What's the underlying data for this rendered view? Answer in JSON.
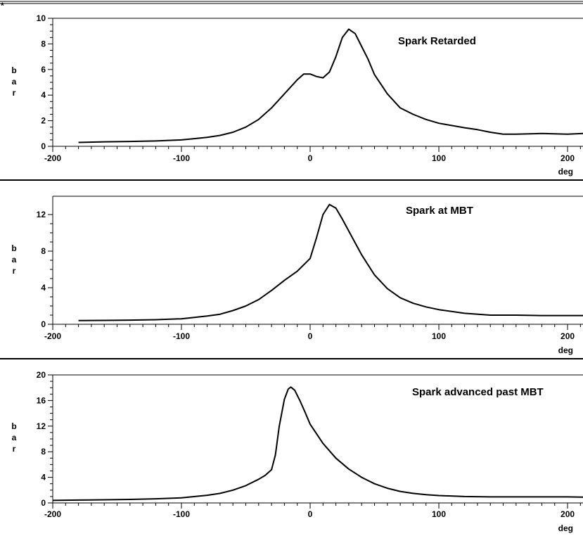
{
  "corner_mark": "*",
  "chart_data": [
    {
      "type": "line",
      "title": "Spark Retarded",
      "xlabel": "deg",
      "ylabel": "b a r",
      "xlim": [
        -200,
        212
      ],
      "ylim": [
        0,
        10
      ],
      "xticks": [
        -200,
        -100,
        0,
        100,
        200
      ],
      "yticks": [
        0,
        2,
        4,
        6,
        8,
        10
      ],
      "grid": false,
      "series": [
        {
          "x": [
            -180,
            -160,
            -140,
            -120,
            -100,
            -90,
            -80,
            -70,
            -60,
            -50,
            -40,
            -30,
            -20,
            -10,
            -5,
            0,
            5,
            10,
            15,
            20,
            25,
            30,
            35,
            40,
            45,
            50,
            60,
            70,
            80,
            90,
            100,
            120,
            130,
            140,
            150,
            160,
            180,
            200,
            212
          ],
          "y": [
            0.3,
            0.35,
            0.38,
            0.42,
            0.5,
            0.6,
            0.7,
            0.85,
            1.1,
            1.5,
            2.1,
            3.0,
            4.1,
            5.2,
            5.65,
            5.65,
            5.45,
            5.35,
            5.8,
            7.0,
            8.5,
            9.15,
            8.8,
            7.8,
            6.8,
            5.6,
            4.1,
            3.0,
            2.5,
            2.1,
            1.8,
            1.45,
            1.3,
            1.1,
            0.95,
            0.95,
            1.0,
            0.95,
            1.0
          ]
        }
      ]
    },
    {
      "type": "line",
      "title": "Spark at MBT",
      "xlabel": "deg",
      "ylabel": "b a r",
      "xlim": [
        -200,
        212
      ],
      "ylim": [
        0,
        14
      ],
      "xticks": [
        -200,
        -100,
        0,
        100,
        200
      ],
      "yticks": [
        0,
        4,
        8,
        12
      ],
      "grid": false,
      "series": [
        {
          "x": [
            -180,
            -160,
            -140,
            -120,
            -100,
            -90,
            -80,
            -70,
            -60,
            -50,
            -40,
            -30,
            -20,
            -10,
            0,
            5,
            10,
            15,
            20,
            25,
            30,
            40,
            50,
            60,
            70,
            80,
            90,
            100,
            120,
            140,
            160,
            180,
            200,
            212
          ],
          "y": [
            0.4,
            0.42,
            0.45,
            0.5,
            0.6,
            0.75,
            0.9,
            1.1,
            1.5,
            2.0,
            2.7,
            3.7,
            4.8,
            5.8,
            7.2,
            9.5,
            12.0,
            13.1,
            12.7,
            11.5,
            10.2,
            7.6,
            5.4,
            3.9,
            2.9,
            2.3,
            1.9,
            1.6,
            1.2,
            1.0,
            1.0,
            0.95,
            0.95,
            0.95
          ]
        }
      ]
    },
    {
      "type": "line",
      "title": "Spark advanced past MBT",
      "xlabel": "deg",
      "ylabel": "b a r",
      "xlim": [
        -200,
        212
      ],
      "ylim": [
        0,
        20
      ],
      "xticks": [
        -200,
        -100,
        0,
        100,
        200
      ],
      "yticks": [
        0,
        4,
        8,
        12,
        16,
        20
      ],
      "grid": false,
      "series": [
        {
          "x": [
            -200,
            -180,
            -160,
            -140,
            -120,
            -100,
            -80,
            -70,
            -60,
            -50,
            -40,
            -35,
            -30,
            -27,
            -24,
            -20,
            -17,
            -15,
            -12,
            -8,
            -4,
            0,
            10,
            20,
            30,
            40,
            50,
            60,
            70,
            80,
            90,
            100,
            120,
            140,
            160,
            180,
            200,
            212
          ],
          "y": [
            0.4,
            0.45,
            0.5,
            0.55,
            0.65,
            0.8,
            1.2,
            1.5,
            2.0,
            2.7,
            3.7,
            4.3,
            5.2,
            7.5,
            12.0,
            16.2,
            17.8,
            18.1,
            17.6,
            16.0,
            14.2,
            12.3,
            9.3,
            7.0,
            5.3,
            4.0,
            3.0,
            2.3,
            1.8,
            1.5,
            1.3,
            1.15,
            1.0,
            0.95,
            0.95,
            0.95,
            0.95,
            0.9
          ]
        }
      ]
    }
  ]
}
